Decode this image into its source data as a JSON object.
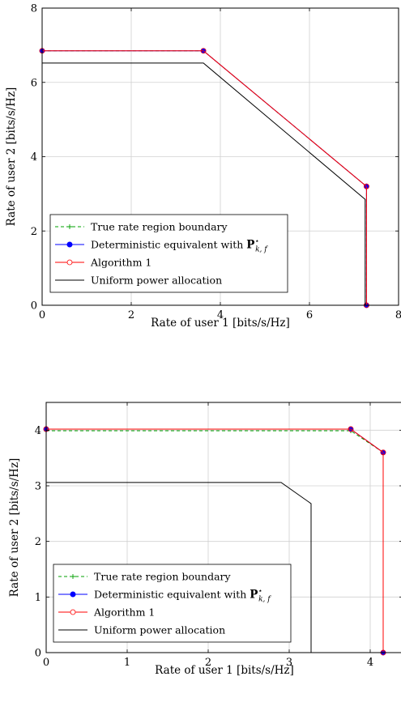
{
  "chart_data": [
    {
      "type": "line",
      "xlabel": "Rate of user 1 [bits/s/Hz]",
      "ylabel": "Rate of user 2 [bits/s/Hz]",
      "xlim": [
        0,
        8
      ],
      "ylim": [
        0,
        8
      ],
      "xticks": [
        0,
        2,
        4,
        6,
        8
      ],
      "yticks": [
        0,
        2,
        4,
        6,
        8
      ],
      "grid": true,
      "legend_position": "bottom-left",
      "series": [
        {
          "name": "True rate region boundary",
          "color": "#00a000",
          "style": "dashed-plus",
          "x": [
            0,
            3.62,
            7.28,
            7.28
          ],
          "y": [
            6.85,
            6.85,
            3.2,
            0
          ]
        },
        {
          "name": "Deterministic equivalent with P*_{k,f}",
          "color": "#0000ff",
          "style": "solid-filled-circle",
          "x": [
            0,
            3.62,
            7.28,
            7.28
          ],
          "y": [
            6.85,
            6.85,
            3.2,
            0
          ]
        },
        {
          "name": "Algorithm 1",
          "color": "#ff0000",
          "style": "solid-open-circle",
          "x": [
            0,
            3.62,
            7.28,
            7.28
          ],
          "y": [
            6.85,
            6.85,
            3.2,
            0
          ]
        },
        {
          "name": "Uniform power allocation",
          "color": "#000000",
          "style": "solid",
          "x": [
            0,
            3.62,
            7.25,
            7.25
          ],
          "y": [
            6.52,
            6.52,
            2.85,
            0
          ]
        }
      ],
      "legend": [
        {
          "text": "True rate region boundary"
        },
        {
          "text": "Deterministic equivalent with ",
          "math_bold": "P",
          "math_sup": "⋆",
          "math_sub": "k, f"
        },
        {
          "text": "Algorithm 1"
        },
        {
          "text": "Uniform power allocation"
        }
      ]
    },
    {
      "type": "line",
      "xlabel": "Rate of user 1 [bits/s/Hz]",
      "ylabel": "Rate of user 2 [bits/s/Hz]",
      "xlim": [
        0,
        4.4
      ],
      "ylim": [
        0,
        4.5
      ],
      "xticks": [
        0,
        1,
        2,
        3,
        4
      ],
      "yticks": [
        0,
        1,
        2,
        3,
        4
      ],
      "grid": true,
      "legend_position": "bottom-left",
      "series": [
        {
          "name": "True rate region boundary",
          "color": "#00a000",
          "style": "dashed-plus",
          "x": [
            0,
            3.76,
            4.16,
            4.16
          ],
          "y": [
            3.99,
            3.99,
            3.6,
            0
          ]
        },
        {
          "name": "Deterministic equivalent with P*_{k,f}",
          "color": "#0000ff",
          "style": "solid-filled-circle",
          "x": [
            0,
            3.76,
            4.16,
            4.16
          ],
          "y": [
            4.02,
            4.02,
            3.6,
            0
          ]
        },
        {
          "name": "Algorithm 1",
          "color": "#ff0000",
          "style": "solid-open-circle",
          "x": [
            0,
            3.76,
            4.16,
            4.16
          ],
          "y": [
            4.02,
            4.02,
            3.6,
            0
          ]
        },
        {
          "name": "Uniform power allocation",
          "color": "#000000",
          "style": "solid",
          "x": [
            0,
            2.9,
            3.27,
            3.27
          ],
          "y": [
            3.06,
            3.06,
            2.68,
            0
          ]
        }
      ],
      "legend": [
        {
          "text": "True rate region boundary"
        },
        {
          "text": "Deterministic equivalent with ",
          "math_bold": "P",
          "math_sup": "⋆",
          "math_sub": "k, f"
        },
        {
          "text": "Algorithm 1"
        },
        {
          "text": "Uniform power allocation"
        }
      ]
    }
  ]
}
